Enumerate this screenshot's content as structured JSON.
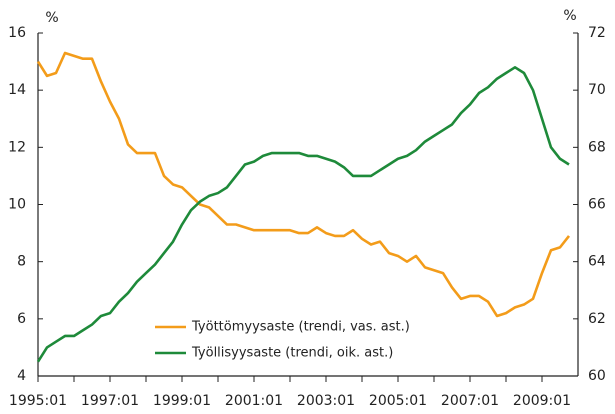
{
  "chart_data": {
    "type": "line",
    "y_label": "%",
    "y2_label": "%",
    "categories": [
      "1995:01",
      null,
      null,
      null,
      null,
      null,
      null,
      null,
      "1997:01",
      null,
      null,
      null,
      null,
      null,
      null,
      null,
      "1999:01",
      null,
      null,
      null,
      null,
      null,
      null,
      null,
      "2001:01",
      null,
      null,
      null,
      null,
      null,
      null,
      null,
      "2003:01",
      null,
      null,
      null,
      null,
      null,
      null,
      null,
      "2005:01",
      null,
      null,
      null,
      null,
      null,
      null,
      null,
      "2007:01",
      null,
      null,
      null,
      null,
      null,
      null,
      null,
      "2009:01",
      null,
      null,
      null
    ],
    "series": [
      {
        "name": "Työttömyysaste (trendi, vas. ast.)",
        "color": "#f39c1a",
        "values": [
          15.0,
          14.5,
          14.6,
          15.3,
          15.2,
          15.1,
          15.1,
          14.3,
          13.6,
          13.0,
          12.1,
          11.8,
          11.8,
          11.8,
          11.0,
          10.7,
          10.6,
          10.3,
          10.0,
          9.9,
          9.6,
          9.3,
          9.3,
          9.2,
          9.1,
          9.1,
          9.1,
          9.1,
          9.1,
          9.0,
          9.0,
          9.2,
          9.0,
          8.9,
          8.9,
          9.1,
          8.8,
          8.6,
          8.7,
          8.3,
          8.2,
          8.0,
          8.2,
          7.8,
          7.7,
          7.6,
          7.1,
          6.7,
          6.8,
          6.8,
          6.6,
          6.1,
          6.2,
          6.4,
          6.5,
          6.7,
          7.6,
          8.4,
          8.5,
          8.9
        ]
      },
      {
        "name": "Työllisyysaste (trendi, oik. ast.)",
        "color": "#1e8a3a",
        "axis": "y2",
        "values": [
          60.5,
          61.0,
          61.2,
          61.4,
          61.4,
          61.6,
          61.8,
          62.1,
          62.2,
          62.6,
          62.9,
          63.3,
          63.6,
          63.9,
          64.3,
          64.7,
          65.3,
          65.8,
          66.1,
          66.3,
          66.4,
          66.6,
          67.0,
          67.4,
          67.5,
          67.7,
          67.8,
          67.8,
          67.8,
          67.8,
          67.7,
          67.7,
          67.6,
          67.5,
          67.3,
          67.0,
          67.0,
          67.0,
          67.2,
          67.4,
          67.6,
          67.7,
          67.9,
          68.2,
          68.4,
          68.6,
          68.8,
          69.2,
          69.5,
          69.9,
          70.1,
          70.4,
          70.6,
          70.8,
          70.6,
          70.0,
          69.0,
          68.0,
          67.6,
          67.4
        ]
      }
    ],
    "ylim": [
      4,
      16
    ],
    "yticks": [
      4,
      6,
      8,
      10,
      12,
      14,
      16
    ],
    "y2lim": [
      60,
      72
    ],
    "y2ticks": [
      60,
      62,
      64,
      66,
      68,
      70,
      72
    ]
  }
}
